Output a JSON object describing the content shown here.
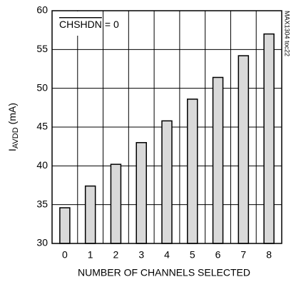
{
  "chart_data": {
    "type": "bar",
    "annotation": {
      "signal": "CHSHDN",
      "rest": "= 0"
    },
    "watermark": "MAX1304 toc22",
    "xlabel": "NUMBER OF CHANNELS SELECTED",
    "ylabel": {
      "main": "I",
      "sub": "AVDD",
      "unit": "(mA)"
    },
    "categories": [
      "0",
      "1",
      "2",
      "3",
      "4",
      "5",
      "6",
      "7",
      "8"
    ],
    "values": [
      34.6,
      37.4,
      40.2,
      43.0,
      45.8,
      48.6,
      51.4,
      54.2,
      57.0
    ],
    "color": "#d9d9d9",
    "ylim": [
      30,
      60
    ],
    "yticks": [
      30,
      35,
      40,
      45,
      50,
      55,
      60
    ],
    "grid": true
  }
}
